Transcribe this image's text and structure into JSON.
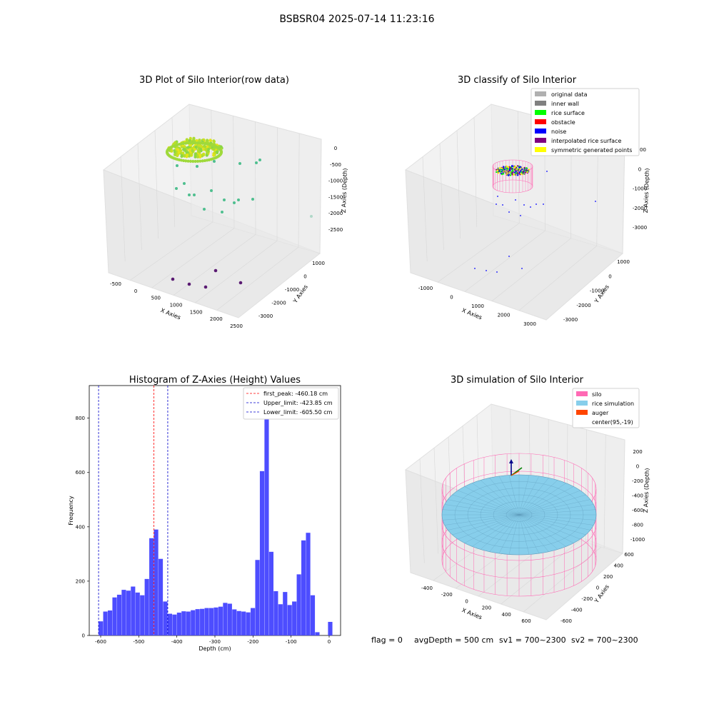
{
  "figure": {
    "title": "BSBSR04 2025-07-14 11:23:16",
    "footer": {
      "flag": "flag = 0",
      "avg": "avgDepth = 500 cm",
      "sv1": "sv1 = 700~2300",
      "sv2": "sv2 = 700~2300"
    }
  },
  "colors": {
    "hist": "#4d4dff",
    "peak": "#ff0000",
    "limit": "#0000cc",
    "silo": "#ff69b4",
    "rice": "#87ceeb",
    "auger": "#ff4500"
  },
  "chart_data": [
    {
      "type": "scatter",
      "projection": "3d",
      "title": "3D Plot of Silo Interior(row data)",
      "xlabel": "X Axies",
      "ylabel": "Y Axies",
      "zlabel": "Z Axies (Depth)",
      "xticks": [
        "-500",
        "0",
        "500",
        "1000",
        "1500",
        "2000",
        "2500"
      ],
      "yticks": [
        "1000",
        "0",
        "-1000",
        "-2000",
        "-3000"
      ],
      "zticks": [
        "0",
        "-500",
        "-1000",
        "-1500",
        "-2000",
        "-2500"
      ],
      "colormap": "viridis"
    },
    {
      "type": "scatter",
      "projection": "3d",
      "title": "3D classify of Silo Interior",
      "xlabel": "X Axies",
      "ylabel": "Y Axies",
      "zlabel": "Z Axies (Depth)",
      "xticks": [
        "-1000",
        "0",
        "1000",
        "2000",
        "3000"
      ],
      "yticks": [
        "1000",
        "0",
        "-1000",
        "-2000",
        "-3000"
      ],
      "zticks": [
        "1000",
        "0",
        "-1000",
        "-2000",
        "-3000"
      ],
      "legend_position": "top-right",
      "legend": [
        {
          "label": "original data",
          "color": "#b0b0b0"
        },
        {
          "label": "inner wall",
          "color": "#808080"
        },
        {
          "label": "rice surface",
          "color": "#00ff00"
        },
        {
          "label": "obstacle",
          "color": "#ff0000"
        },
        {
          "label": "noise",
          "color": "#0000ff"
        },
        {
          "label": "interpolated rice surface",
          "color": "#800080"
        },
        {
          "label": "symmetric generated points",
          "color": "#ffff00"
        }
      ]
    },
    {
      "type": "bar",
      "title": "Histogram of Z-Axies (Height) Values",
      "xlabel": "Depth (cm)",
      "ylabel": "Frequency",
      "xlim": [
        -630,
        30
      ],
      "ylim": [
        0,
        920
      ],
      "xticks": [
        -600,
        -500,
        -400,
        -300,
        -200,
        -100,
        0
      ],
      "yticks": [
        0,
        200,
        400,
        600,
        800
      ],
      "bin_width": 12.1,
      "bins": [
        {
          "left": -605.5,
          "count": 52
        },
        {
          "left": -593.4,
          "count": 88
        },
        {
          "left": -581.3,
          "count": 92
        },
        {
          "left": -569.2,
          "count": 140
        },
        {
          "left": -557.1,
          "count": 150
        },
        {
          "left": -545.0,
          "count": 168
        },
        {
          "left": -532.9,
          "count": 165
        },
        {
          "left": -520.8,
          "count": 180
        },
        {
          "left": -508.7,
          "count": 158
        },
        {
          "left": -496.6,
          "count": 148
        },
        {
          "left": -484.5,
          "count": 208
        },
        {
          "left": -472.4,
          "count": 358
        },
        {
          "left": -460.3,
          "count": 390
        },
        {
          "left": -448.2,
          "count": 282
        },
        {
          "left": -436.1,
          "count": 125
        },
        {
          "left": -424.0,
          "count": 80
        },
        {
          "left": -411.9,
          "count": 77
        },
        {
          "left": -399.8,
          "count": 84
        },
        {
          "left": -387.7,
          "count": 89
        },
        {
          "left": -375.6,
          "count": 88
        },
        {
          "left": -363.5,
          "count": 93
        },
        {
          "left": -351.4,
          "count": 97
        },
        {
          "left": -339.3,
          "count": 98
        },
        {
          "left": -327.2,
          "count": 101
        },
        {
          "left": -315.1,
          "count": 101
        },
        {
          "left": -303.0,
          "count": 103
        },
        {
          "left": -290.9,
          "count": 106
        },
        {
          "left": -278.8,
          "count": 120
        },
        {
          "left": -266.7,
          "count": 117
        },
        {
          "left": -254.6,
          "count": 96
        },
        {
          "left": -242.5,
          "count": 90
        },
        {
          "left": -230.4,
          "count": 88
        },
        {
          "left": -218.3,
          "count": 85
        },
        {
          "left": -206.2,
          "count": 101
        },
        {
          "left": -194.1,
          "count": 278
        },
        {
          "left": -182.0,
          "count": 605
        },
        {
          "left": -169.9,
          "count": 870
        },
        {
          "left": -157.8,
          "count": 308
        },
        {
          "left": -145.7,
          "count": 163
        },
        {
          "left": -133.6,
          "count": 115
        },
        {
          "left": -121.5,
          "count": 160
        },
        {
          "left": -109.4,
          "count": 112
        },
        {
          "left": -97.3,
          "count": 125
        },
        {
          "left": -85.2,
          "count": 225
        },
        {
          "left": -73.1,
          "count": 350
        },
        {
          "left": -61.0,
          "count": 378
        },
        {
          "left": -48.9,
          "count": 148
        },
        {
          "left": -36.8,
          "count": 12
        },
        {
          "left": -24.7,
          "count": 0
        },
        {
          "left": -12.6,
          "count": 0
        },
        {
          "left": -3.0,
          "count": 50
        }
      ],
      "vlines": [
        {
          "x": -460.18,
          "label": "first_peak: -460.18 cm",
          "color": "#ff0000"
        },
        {
          "x": -423.85,
          "label": "Upper_limit: -423.85 cm",
          "color": "#0000cc"
        },
        {
          "x": -605.5,
          "label": "Lower_limit: -605.50 cm",
          "color": "#0000cc"
        }
      ],
      "legend_position": "top-right"
    },
    {
      "type": "surface",
      "projection": "3d",
      "title": "3D simulation of Silo Interior",
      "xlabel": "X Axies",
      "ylabel": "Y Axies",
      "zlabel": "Z Axies (Depth)",
      "xticks": [
        "-400",
        "-200",
        "0",
        "200",
        "400",
        "600"
      ],
      "yticks": [
        "600",
        "400",
        "200",
        "0",
        "-200",
        "-400",
        "-600"
      ],
      "zticks": [
        "200",
        "0",
        "-200",
        "-400",
        "-600",
        "-800",
        "-1000"
      ],
      "legend_position": "top-right",
      "legend": [
        {
          "label": "silo",
          "color": "#ff69b4"
        },
        {
          "label": "rice simulation",
          "color": "#87ceeb"
        },
        {
          "label": "auger",
          "color": "#ff4500"
        },
        {
          "label": "center(95,-19)",
          "color": "#ffffff"
        }
      ]
    }
  ]
}
